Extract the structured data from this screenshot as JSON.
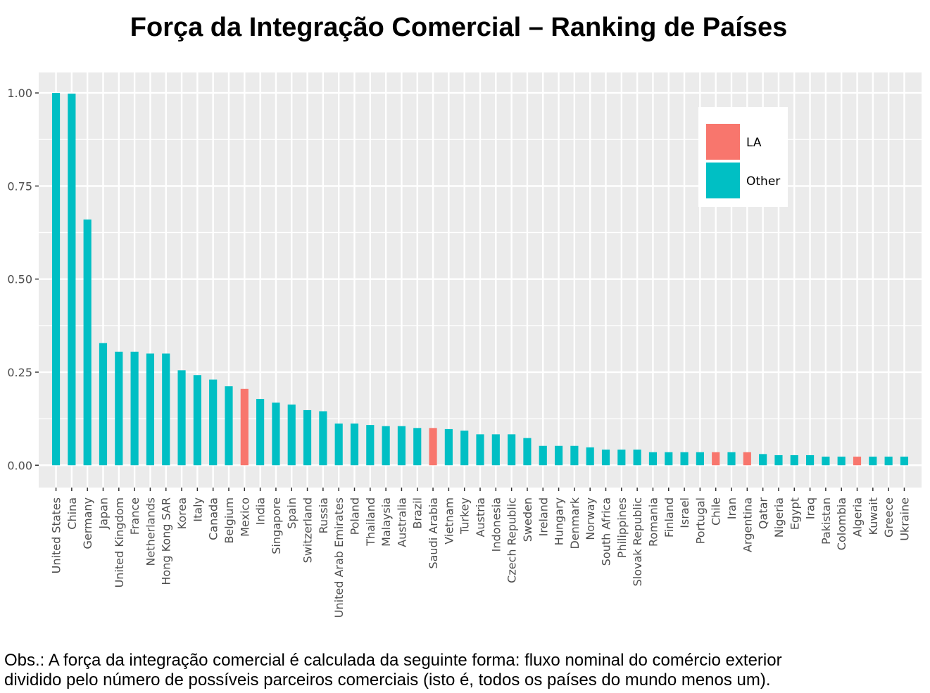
{
  "chart_data": {
    "type": "bar",
    "title": "Força da Integração Comercial – Ranking de Países",
    "xlabel": "",
    "ylabel": "",
    "ylim": [
      -0.06,
      1.055
    ],
    "yticks": [
      0.0,
      0.25,
      0.5,
      0.75,
      1.0
    ],
    "ytick_labels": [
      "0.00",
      "0.25",
      "0.50",
      "0.75",
      "1.00"
    ],
    "grid": true,
    "legend": {
      "placement": "top-right",
      "entries": [
        {
          "name": "LA",
          "color": "#F8766D"
        },
        {
          "name": "Other",
          "color": "#00BFC4"
        }
      ]
    },
    "categories": [
      "United States",
      "China",
      "Germany",
      "Japan",
      "United Kingdom",
      "France",
      "Netherlands",
      "Hong Kong SAR",
      "Korea",
      "Italy",
      "Canada",
      "Belgium",
      "Mexico",
      "India",
      "Singapore",
      "Spain",
      "Switzerland",
      "Russia",
      "United Arab Emirates",
      "Poland",
      "Thailand",
      "Malaysia",
      "Australia",
      "Brazil",
      "Saudi Arabia",
      "Vietnam",
      "Turkey",
      "Austria",
      "Indonesia",
      "Czech Republic",
      "Sweden",
      "Ireland",
      "Hungary",
      "Denmark",
      "Norway",
      "South Africa",
      "Philippines",
      "Slovak Republic",
      "Romania",
      "Finland",
      "Israel",
      "Portugal",
      "Chile",
      "Iran",
      "Argentina",
      "Qatar",
      "Nigeria",
      "Egypt",
      "Iraq",
      "Pakistan",
      "Colombia",
      "Algeria",
      "Kuwait",
      "Greece",
      "Ukraine"
    ],
    "values": [
      1.0,
      0.998,
      0.66,
      0.328,
      0.305,
      0.305,
      0.3,
      0.3,
      0.255,
      0.242,
      0.23,
      0.212,
      0.205,
      0.178,
      0.168,
      0.163,
      0.148,
      0.145,
      0.112,
      0.112,
      0.108,
      0.105,
      0.105,
      0.1,
      0.1,
      0.097,
      0.093,
      0.083,
      0.083,
      0.083,
      0.073,
      0.052,
      0.052,
      0.052,
      0.048,
      0.042,
      0.042,
      0.042,
      0.035,
      0.035,
      0.035,
      0.035,
      0.035,
      0.035,
      0.035,
      0.03,
      0.027,
      0.027,
      0.027,
      0.023,
      0.023,
      0.023,
      0.023,
      0.023,
      0.023
    ],
    "groups": [
      "Other",
      "Other",
      "Other",
      "Other",
      "Other",
      "Other",
      "Other",
      "Other",
      "Other",
      "Other",
      "Other",
      "Other",
      "LA",
      "Other",
      "Other",
      "Other",
      "Other",
      "Other",
      "Other",
      "Other",
      "Other",
      "Other",
      "Other",
      "Other",
      "LA",
      "Other",
      "Other",
      "Other",
      "Other",
      "Other",
      "Other",
      "Other",
      "Other",
      "Other",
      "Other",
      "Other",
      "Other",
      "Other",
      "Other",
      "Other",
      "Other",
      "Other",
      "LA",
      "Other",
      "LA",
      "Other",
      "Other",
      "Other",
      "Other",
      "Other",
      "Other",
      "LA",
      "Other",
      "Other",
      "Other"
    ],
    "colors": {
      "LA": "#F8766D",
      "Other": "#00BFC4"
    }
  },
  "note": {
    "line1": "Obs.: A força da integração comercial é calculada da seguinte forma: fluxo nominal do comércio exterior",
    "line2": "dividido pelo número de possíveis parceiros comerciais (isto é, todos os países do mundo menos um)."
  }
}
